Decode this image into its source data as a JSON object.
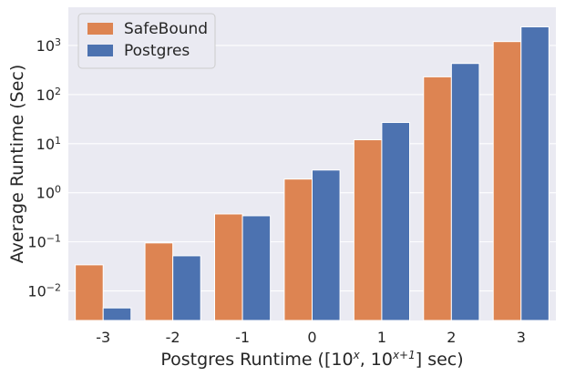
{
  "chart_data": {
    "type": "bar",
    "categories": [
      "-3",
      "-2",
      "-1",
      "0",
      "1",
      "2",
      "3"
    ],
    "series": [
      {
        "name": "SafeBound",
        "color": "#dd8452",
        "values": [
          0.034,
          0.095,
          0.37,
          1.9,
          12.0,
          230,
          1200
        ]
      },
      {
        "name": "Postgres",
        "color": "#4c72b0",
        "values": [
          0.0045,
          0.052,
          0.34,
          2.9,
          27.0,
          430,
          2400
        ]
      }
    ],
    "xlabel": {
      "prefix": "Postgres Runtime ([10",
      "sup1": "x",
      "middle": ", 10",
      "sup2": "x+1",
      "suffix": "] sec)"
    },
    "ylabel": "Average Runtime (Sec)",
    "yscale": "log",
    "ylim": [
      0.0025,
      6000
    ],
    "yticks": [
      {
        "value": 0.01,
        "base": "10",
        "exp": "−2"
      },
      {
        "value": 0.1,
        "base": "10",
        "exp": "−1"
      },
      {
        "value": 1,
        "base": "10",
        "exp": "0"
      },
      {
        "value": 10,
        "base": "10",
        "exp": "1"
      },
      {
        "value": 100,
        "base": "10",
        "exp": "2"
      },
      {
        "value": 1000,
        "base": "10",
        "exp": "3"
      }
    ],
    "grid": true,
    "legend_position": "top-left",
    "style": {
      "background": "#eaeaf2",
      "grid_color": "#ffffff"
    }
  }
}
